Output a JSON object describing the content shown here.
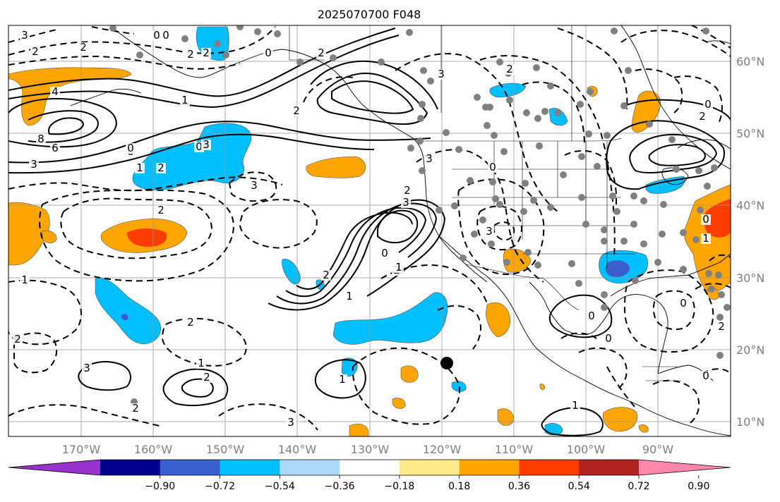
{
  "title": "2025070700 F048",
  "map": {
    "projection": "PlateCarree",
    "extent_lon": [
      -180,
      -80
    ],
    "extent_lat": [
      8,
      65
    ],
    "grid": true,
    "contour_style": "solid black = positive, dashed black = negative",
    "longitude_labels": [
      "170°W",
      "160°W",
      "150°W",
      "140°W",
      "130°W",
      "120°W",
      "110°W",
      "100°W",
      "90°W"
    ],
    "latitude_labels": [
      "60°N",
      "50°N",
      "40°N",
      "30°N",
      "20°N",
      "10°N"
    ],
    "contour_labels": [
      "3",
      "2",
      "2",
      "0",
      "0",
      "0",
      "2",
      "3",
      "3",
      "2",
      "2",
      "4",
      "1",
      "2",
      "0",
      "3",
      "8",
      "6",
      "3",
      "0",
      "1",
      "2",
      "2",
      "0",
      "3",
      "2",
      "3",
      "3",
      "2",
      "0",
      "0",
      "2",
      "2",
      "1",
      "2",
      "0",
      "1",
      "1",
      "3",
      "1",
      "2",
      "3",
      "2",
      "1",
      "0",
      "0",
      "1",
      "2",
      "0",
      "0",
      "0",
      "1",
      "2",
      "2"
    ],
    "marker": {
      "description": "black dot",
      "lon": -119.5,
      "lat": 18.0,
      "color": "#000000"
    },
    "stations": {
      "color": "#808080"
    }
  },
  "colorbar": {
    "orientation": "horizontal",
    "extend": "both",
    "tick_labels": [
      "−0.90",
      "−0.72",
      "−0.54",
      "−0.36",
      "−0.18",
      "0.18",
      "0.36",
      "0.54",
      "0.72",
      "0.90"
    ],
    "colors": [
      "#9932cc",
      "#00008b",
      "#3a5fcd",
      "#00bfff",
      "#add8f8",
      "#ffffff",
      "#ffeb8c",
      "#ffa500",
      "#ff3c00",
      "#b22222",
      "#ff88aa"
    ]
  }
}
